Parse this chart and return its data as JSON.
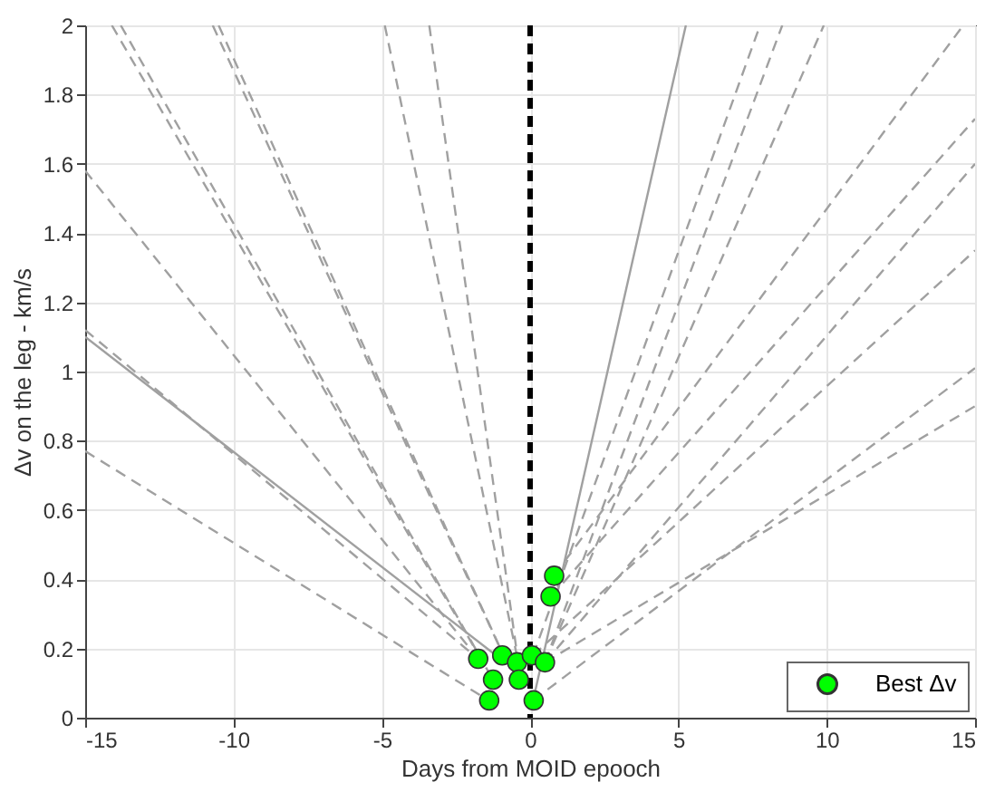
{
  "chart_data": {
    "type": "line",
    "xlabel": "Days from MOID epooch",
    "ylabel": "Δv on the leg - km/s",
    "xlim": [
      -15,
      15
    ],
    "xticks": [
      -15,
      -10,
      -5,
      0,
      5,
      10,
      15
    ],
    "ylim": [
      0,
      2
    ],
    "yticks": [
      0,
      0.2,
      0.4,
      0.6,
      0.8,
      1,
      1.2,
      1.4,
      1.6,
      1.8,
      2
    ],
    "grid": true,
    "legend": "bottom right",
    "ref_lines": [
      {
        "axis": "x",
        "value": 0,
        "color": "#000000",
        "line_style": "dashed"
      }
    ],
    "series": [
      {
        "color": "#a0a0a0",
        "line_style": "dashed",
        "x": [
          -15,
          -1.4
        ],
        "values": [
          0.77,
          0.05
        ]
      },
      {
        "color": "#a0a0a0",
        "line_style": "solid",
        "x": [
          -15,
          -1.0
        ],
        "values": [
          1.1,
          0.17
        ]
      },
      {
        "color": "#a0a0a0",
        "line_style": "dashed",
        "x": [
          -15,
          -1.75
        ],
        "values": [
          1.12,
          0.17
        ]
      },
      {
        "color": "#a0a0a0",
        "line_style": "dashed",
        "x": [
          -15,
          -1.75
        ],
        "values": [
          1.58,
          0.17
        ]
      },
      {
        "color": "#a0a0a0",
        "line_style": "dashed",
        "x": [
          -14.1,
          -1.25
        ],
        "values": [
          2,
          0.11
        ]
      },
      {
        "color": "#a0a0a0",
        "line_style": "dashed",
        "x": [
          -13.8,
          -1.25
        ],
        "values": [
          2,
          0.11
        ]
      },
      {
        "color": "#a0a0a0",
        "line_style": "dashed",
        "x": [
          -10.7,
          -0.9
        ],
        "values": [
          2,
          0.18
        ]
      },
      {
        "color": "#a0a0a0",
        "line_style": "dashed",
        "x": [
          -10.5,
          -0.9
        ],
        "values": [
          2,
          0.18
        ]
      },
      {
        "color": "#a0a0a0",
        "line_style": "dashed",
        "x": [
          -4.9,
          -0.4
        ],
        "values": [
          2,
          0.16
        ]
      },
      {
        "color": "#a0a0a0",
        "line_style": "dashed",
        "x": [
          -3.4,
          -0.4
        ],
        "values": [
          2,
          0.16
        ]
      },
      {
        "color": "#a0a0a0",
        "line_style": "solid",
        "x": [
          0.1,
          5.25
        ],
        "values": [
          0.05,
          2
        ]
      },
      {
        "color": "#a0a0a0",
        "line_style": "dashed",
        "x": [
          0.1,
          7.75
        ],
        "values": [
          0.18,
          2
        ]
      },
      {
        "color": "#a0a0a0",
        "line_style": "dashed",
        "x": [
          0.5,
          8.5
        ],
        "values": [
          0.16,
          2
        ]
      },
      {
        "color": "#a0a0a0",
        "line_style": "dashed",
        "x": [
          0.5,
          9.9
        ],
        "values": [
          0.16,
          2
        ]
      },
      {
        "color": "#a0a0a0",
        "line_style": "dashed",
        "x": [
          0.8,
          14.6
        ],
        "values": [
          0.41,
          2
        ]
      },
      {
        "color": "#a0a0a0",
        "line_style": "dashed",
        "x": [
          0.7,
          15
        ],
        "values": [
          0.35,
          1.73
        ]
      },
      {
        "color": "#a0a0a0",
        "line_style": "dashed",
        "x": [
          0.5,
          15
        ],
        "values": [
          0.16,
          1.6
        ]
      },
      {
        "color": "#a0a0a0",
        "line_style": "dashed",
        "x": [
          0.1,
          15
        ],
        "values": [
          0.18,
          1.35
        ]
      },
      {
        "color": "#a0a0a0",
        "line_style": "dashed",
        "x": [
          0.1,
          15
        ],
        "values": [
          0.05,
          1.01
        ]
      },
      {
        "color": "#a0a0a0",
        "line_style": "dashed",
        "x": [
          0.5,
          15
        ],
        "values": [
          0.16,
          0.9
        ]
      },
      {
        "type": "scatter",
        "name": "Best Δv",
        "color": "#00ff00",
        "marker": "circle",
        "x": [
          -1.75,
          -0.94,
          -0.44,
          0.06,
          0.5,
          -1.25,
          -0.38,
          -1.38,
          0.12,
          0.81,
          0.69
        ],
        "values": [
          0.17,
          0.18,
          0.16,
          0.18,
          0.16,
          0.11,
          0.11,
          0.05,
          0.05,
          0.41,
          0.35
        ]
      }
    ]
  }
}
